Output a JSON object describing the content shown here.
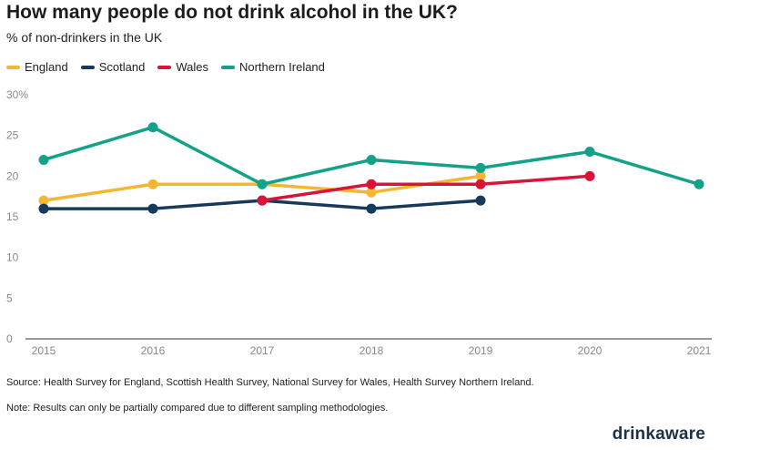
{
  "header": {
    "title": "How many people do not drink alcohol in the UK?",
    "subtitle": "% of non-drinkers in the UK"
  },
  "footer": {
    "source": "Source: Health Survey for England, Scottish Health Survey, National Survey for Wales, Health Survey Northern Ireland.",
    "note": "Note: Results can only be partially compared due to different sampling methodologies.",
    "brand": "drinkaware"
  },
  "chart_data": {
    "type": "line",
    "title": "How many people do not drink alcohol in the UK?",
    "subtitle": "% of non-drinkers in the UK",
    "x": [
      2015,
      2016,
      2017,
      2018,
      2019,
      2020,
      2021
    ],
    "x_tick_labels": [
      "2015",
      "2016",
      "2017",
      "2018",
      "2019",
      "2020",
      "2021"
    ],
    "y_ticks": [
      0,
      5,
      10,
      15,
      20,
      25,
      30
    ],
    "y_tick_labels": [
      "0",
      "5",
      "10",
      "15",
      "20",
      "25",
      "30%"
    ],
    "ylim": [
      0,
      30
    ],
    "grid": false,
    "legend_position": "top-left",
    "series": [
      {
        "name": "England",
        "color": "#f5b731",
        "x": [
          2015,
          2016,
          2017,
          2018,
          2019
        ],
        "values": [
          17,
          19,
          19,
          18,
          20
        ]
      },
      {
        "name": "Scotland",
        "color": "#173a5a",
        "x": [
          2015,
          2016,
          2017,
          2018,
          2019
        ],
        "values": [
          16,
          16,
          17,
          16,
          17
        ]
      },
      {
        "name": "Wales",
        "color": "#d8143a",
        "x": [
          2017,
          2018,
          2019,
          2020
        ],
        "values": [
          17,
          19,
          19,
          20
        ]
      },
      {
        "name": "Northern Ireland",
        "color": "#13a287",
        "x": [
          2015,
          2016,
          2017,
          2018,
          2019,
          2020,
          2021
        ],
        "values": [
          22,
          26,
          19,
          22,
          21,
          23,
          19
        ]
      }
    ]
  }
}
